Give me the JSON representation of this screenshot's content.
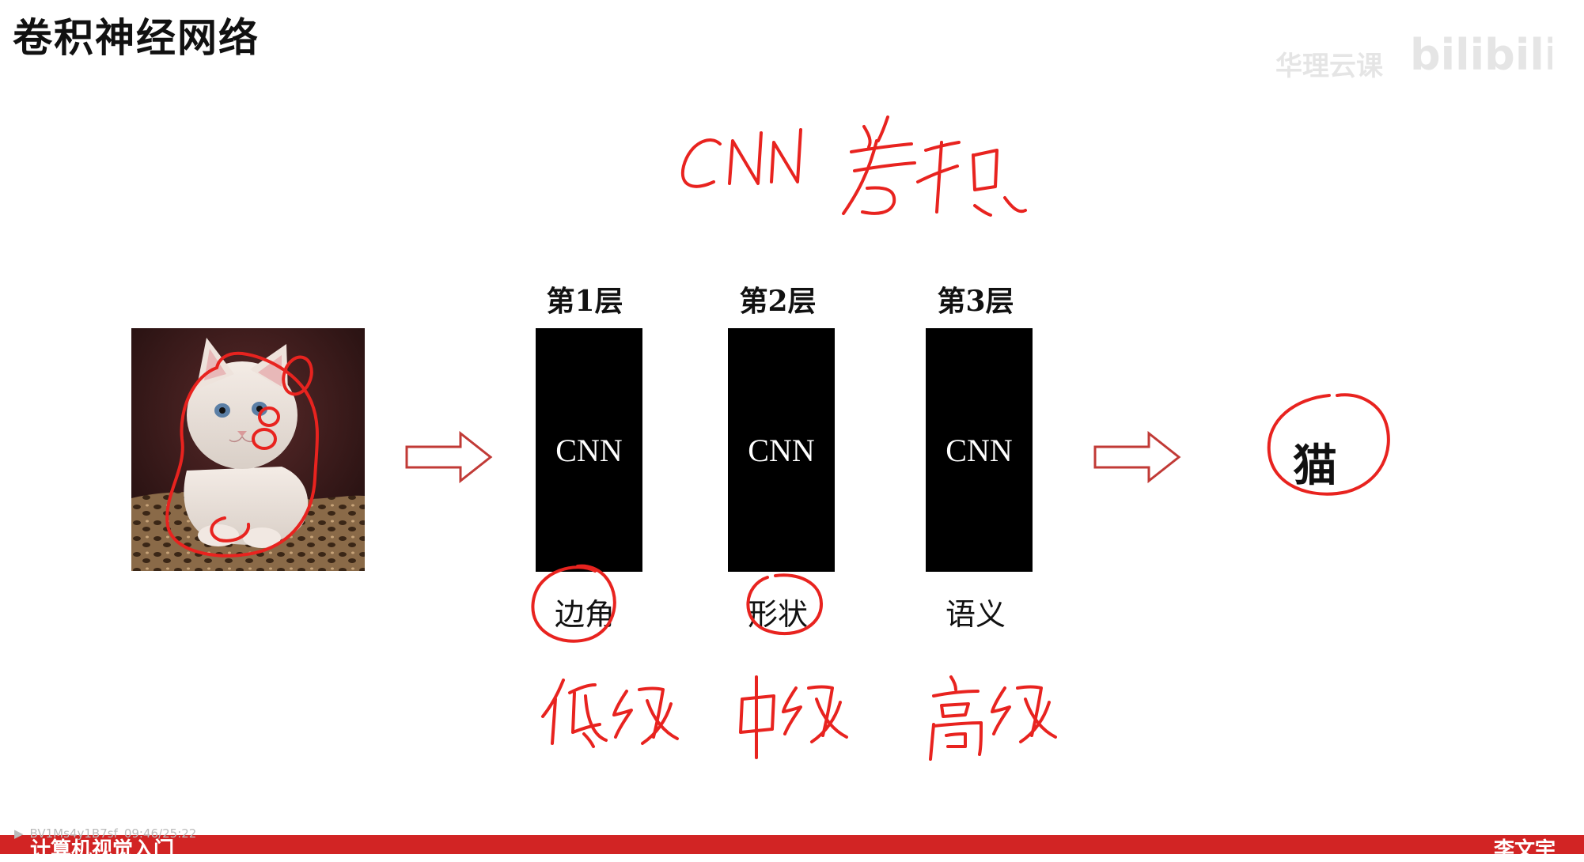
{
  "slide": {
    "title": "卷积神经网络",
    "watermark_channel": "华理云课",
    "watermark_logo": "bilibili",
    "accent_color": "#e8231f",
    "box_color": "#000000"
  },
  "diagram": {
    "input": {
      "description": "cat-photo",
      "icon": "cat-photo"
    },
    "layers": [
      {
        "title": "第1层",
        "label": "CNN",
        "feature": "边角"
      },
      {
        "title": "第2层",
        "label": "CNN",
        "feature": "形状"
      },
      {
        "title": "第3层",
        "label": "CNN",
        "feature": "语义"
      }
    ],
    "output": "猫"
  },
  "handwritten_annotations": {
    "top": "CNN 卷积",
    "bottom": [
      "低级",
      "中级",
      "高级"
    ]
  },
  "footer": {
    "video_id": "BV1Ms4y1B7sf",
    "timecode": "09:46/25:22",
    "left_text": "计算机视觉入门",
    "right_text": "李文宇"
  }
}
